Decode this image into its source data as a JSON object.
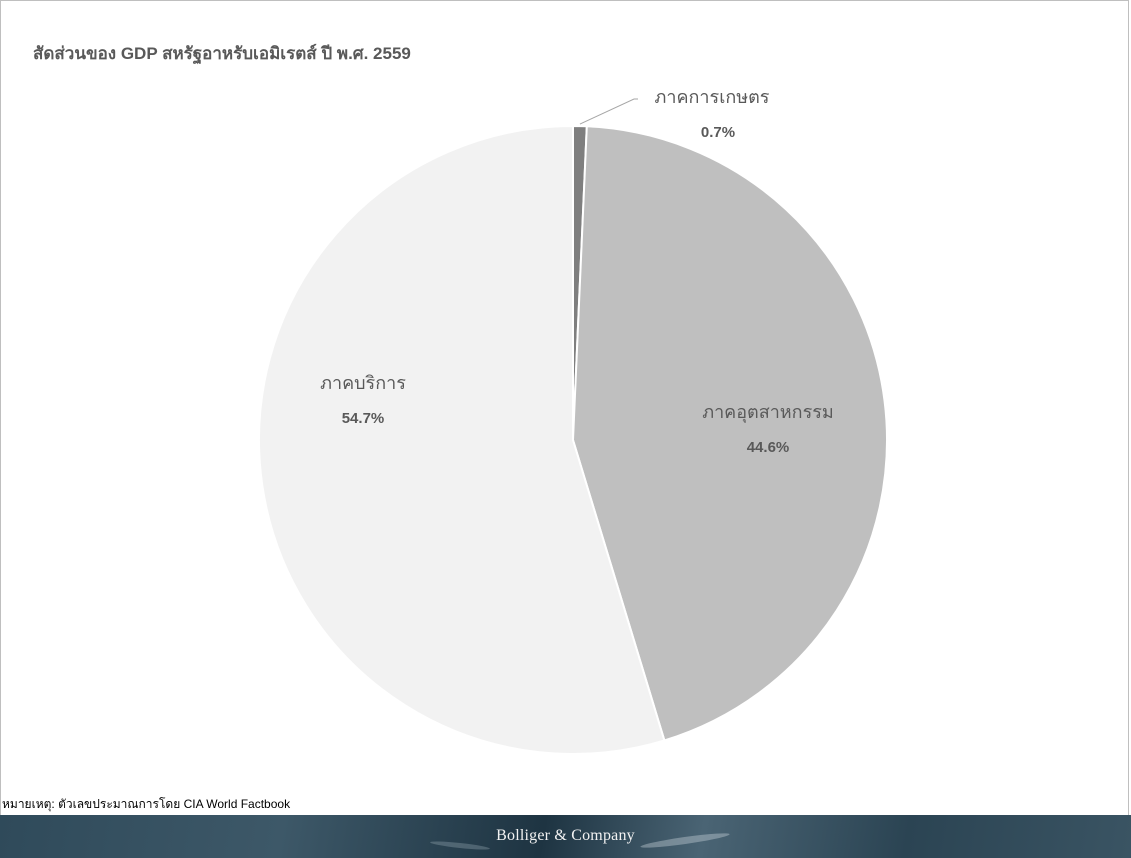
{
  "chart_data": {
    "type": "pie",
    "title": "สัดส่วนของ GDP สหรัฐอาหรับเอมิเรตส์ ปี พ.ศ. 2559",
    "slices": [
      {
        "label": "ภาคการเกษตร",
        "value": 0.7,
        "value_label": "0.7%",
        "color": "#7f7f7f"
      },
      {
        "label": "ภาคอุตสาหกรรม",
        "value": 44.6,
        "value_label": "44.6%",
        "color": "#bfbfbf"
      },
      {
        "label": "ภาคบริการ",
        "value": 54.7,
        "value_label": "54.7%",
        "color": "#f2f2f2"
      }
    ],
    "start_angle": "12 o'clock",
    "direction": "clockwise"
  },
  "note": "หมายเหตุ: ตัวเลขประมาณการโดย CIA World Factbook",
  "footer": {
    "brand": "Bolliger & Company"
  }
}
